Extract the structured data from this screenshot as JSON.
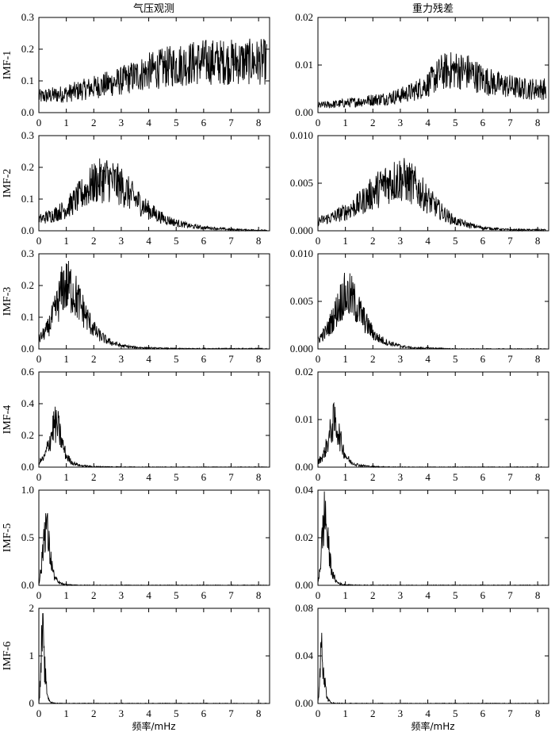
{
  "column_titles": [
    "气压观测",
    "重力残差"
  ],
  "x_axis_label": "频率/mHz",
  "chart_data": {
    "type": "line",
    "x_ticks": [
      "0",
      "1",
      "2",
      "3",
      "4",
      "5",
      "6",
      "7",
      "8"
    ],
    "xlim": [
      0,
      8.4
    ],
    "rows": [
      {
        "label": "IMF-1",
        "left": {
          "ylim": [
            0,
            0.3
          ],
          "yticks": [
            "0.0",
            "0.1",
            "0.2",
            "0.3"
          ],
          "x": [
            0,
            0.5,
            1,
            1.5,
            2,
            2.5,
            3,
            3.5,
            4,
            4.5,
            5,
            5.5,
            6,
            6.5,
            7,
            7.5,
            8,
            8.3
          ],
          "y": [
            0.05,
            0.055,
            0.06,
            0.07,
            0.08,
            0.09,
            0.1,
            0.115,
            0.13,
            0.14,
            0.15,
            0.155,
            0.16,
            0.16,
            0.16,
            0.16,
            0.16,
            0.16
          ]
        },
        "right": {
          "ylim": [
            0,
            0.02
          ],
          "yticks": [
            "0.00",
            "0.01",
            "0.02"
          ],
          "x": [
            0,
            0.5,
            1,
            1.5,
            2,
            2.5,
            3,
            3.5,
            4,
            4.5,
            5,
            5.5,
            6,
            6.5,
            7,
            7.5,
            8,
            8.3
          ],
          "y": [
            0.0015,
            0.0017,
            0.002,
            0.0023,
            0.0027,
            0.003,
            0.0036,
            0.0045,
            0.006,
            0.0085,
            0.009,
            0.0085,
            0.007,
            0.006,
            0.0055,
            0.005,
            0.005,
            0.005
          ]
        }
      },
      {
        "label": "IMF-2",
        "left": {
          "ylim": [
            0,
            0.3
          ],
          "yticks": [
            "0.0",
            "0.1",
            "0.2",
            "0.3"
          ],
          "x": [
            0,
            0.5,
            1,
            1.5,
            2,
            2.5,
            3,
            3.5,
            4,
            4.5,
            5,
            5.5,
            6,
            6.5,
            7,
            7.5,
            8,
            8.3
          ],
          "y": [
            0.035,
            0.05,
            0.07,
            0.11,
            0.15,
            0.165,
            0.14,
            0.1,
            0.065,
            0.04,
            0.025,
            0.015,
            0.01,
            0.007,
            0.004,
            0.003,
            0.002,
            0.001
          ]
        },
        "right": {
          "ylim": [
            0,
            0.01
          ],
          "yticks": [
            "0.000",
            "0.005",
            "0.010"
          ],
          "x": [
            0,
            0.5,
            1,
            1.5,
            2,
            2.5,
            3,
            3.5,
            4,
            4.5,
            5,
            5.5,
            6,
            6.5,
            7,
            7.5,
            8,
            8.3
          ],
          "y": [
            0.001,
            0.0014,
            0.002,
            0.0028,
            0.004,
            0.005,
            0.0055,
            0.0048,
            0.0033,
            0.002,
            0.001,
            0.0006,
            0.0003,
            0.0002,
            0.0001,
            0.0001,
            0.0001,
            0.0001
          ]
        }
      },
      {
        "label": "IMF-3",
        "left": {
          "ylim": [
            0,
            0.3
          ],
          "yticks": [
            "0.0",
            "0.1",
            "0.2",
            "0.3"
          ],
          "x": [
            0,
            0.3,
            0.6,
            0.9,
            1.2,
            1.5,
            1.8,
            2.1,
            2.5,
            3,
            3.5,
            4,
            5,
            6,
            7,
            8,
            8.3
          ],
          "y": [
            0.03,
            0.06,
            0.12,
            0.2,
            0.19,
            0.14,
            0.09,
            0.05,
            0.025,
            0.01,
            0.005,
            0.003,
            0.001,
            0.001,
            0.001,
            0.001,
            0.001
          ]
        },
        "right": {
          "ylim": [
            0,
            0.01
          ],
          "yticks": [
            "0.000",
            "0.005",
            "0.010"
          ],
          "x": [
            0,
            0.3,
            0.6,
            0.9,
            1.2,
            1.5,
            1.8,
            2.1,
            2.5,
            3,
            3.5,
            4,
            5,
            6,
            7,
            8,
            8.3
          ],
          "y": [
            0.001,
            0.0018,
            0.0035,
            0.0055,
            0.0055,
            0.004,
            0.0025,
            0.0013,
            0.0007,
            0.0003,
            0.0001,
            0.0001,
            0,
            0,
            0,
            0,
            0
          ]
        }
      },
      {
        "label": "IMF-4",
        "left": {
          "ylim": [
            0,
            0.6
          ],
          "yticks": [
            "0.0",
            "0.2",
            "0.4",
            "0.6"
          ],
          "x": [
            0,
            0.2,
            0.4,
            0.55,
            0.7,
            0.85,
            1,
            1.2,
            1.5,
            2,
            3,
            4,
            5,
            6,
            7,
            8,
            8.3
          ],
          "y": [
            0.03,
            0.06,
            0.17,
            0.27,
            0.25,
            0.15,
            0.07,
            0.03,
            0.01,
            0.003,
            0.001,
            0,
            0,
            0,
            0,
            0,
            0
          ]
        },
        "right": {
          "ylim": [
            0,
            0.02
          ],
          "yticks": [
            "0.00",
            "0.01",
            "0.02"
          ],
          "x": [
            0,
            0.2,
            0.4,
            0.55,
            0.7,
            0.85,
            1,
            1.2,
            1.5,
            2,
            3,
            4,
            5,
            6,
            7,
            8,
            8.3
          ],
          "y": [
            0.001,
            0.0025,
            0.006,
            0.0095,
            0.0085,
            0.005,
            0.0025,
            0.001,
            0.0004,
            0.0001,
            0,
            0,
            0,
            0,
            0,
            0,
            0
          ]
        }
      },
      {
        "label": "IMF-5",
        "left": {
          "ylim": [
            0,
            1.0
          ],
          "yticks": [
            "0.0",
            "0.5",
            "1.0"
          ],
          "x": [
            0,
            0.1,
            0.2,
            0.28,
            0.35,
            0.45,
            0.55,
            0.7,
            0.9,
            1.2,
            2,
            3,
            4,
            5,
            6,
            7,
            8,
            8.3
          ],
          "y": [
            0.02,
            0.2,
            0.6,
            0.65,
            0.45,
            0.25,
            0.1,
            0.03,
            0.01,
            0.002,
            0,
            0,
            0,
            0,
            0,
            0,
            0,
            0
          ]
        },
        "right": {
          "ylim": [
            0,
            0.04
          ],
          "yticks": [
            "0.00",
            "0.02",
            "0.04"
          ],
          "x": [
            0,
            0.1,
            0.2,
            0.28,
            0.35,
            0.45,
            0.55,
            0.7,
            0.9,
            1.2,
            2,
            3,
            4,
            5,
            6,
            7,
            8,
            8.3
          ],
          "y": [
            0.001,
            0.01,
            0.027,
            0.03,
            0.019,
            0.01,
            0.004,
            0.0012,
            0.0003,
            0.0001,
            0,
            0,
            0,
            0,
            0,
            0,
            0,
            0
          ]
        }
      },
      {
        "label": "IMF-6",
        "left": {
          "ylim": [
            0,
            2
          ],
          "yticks": [
            "0",
            "1",
            "2"
          ],
          "x": [
            0,
            0.05,
            0.1,
            0.14,
            0.17,
            0.22,
            0.28,
            0.35,
            0.45,
            0.6,
            1,
            2,
            3,
            4,
            5,
            6,
            7,
            8,
            8.3
          ],
          "y": [
            0.02,
            0.4,
            1.2,
            1.58,
            1.0,
            0.7,
            0.3,
            0.1,
            0.02,
            0.005,
            0,
            0,
            0,
            0,
            0,
            0,
            0,
            0,
            0
          ]
        },
        "right": {
          "ylim": [
            0,
            0.08
          ],
          "yticks": [
            "0.00",
            "0.04",
            "0.08"
          ],
          "x": [
            0,
            0.05,
            0.1,
            0.14,
            0.17,
            0.22,
            0.28,
            0.35,
            0.45,
            0.6,
            1,
            2,
            3,
            4,
            5,
            6,
            7,
            8,
            8.3
          ],
          "y": [
            0.001,
            0.015,
            0.045,
            0.062,
            0.04,
            0.027,
            0.012,
            0.004,
            0.001,
            0.0002,
            0,
            0,
            0,
            0,
            0,
            0,
            0,
            0,
            0
          ]
        }
      }
    ]
  }
}
